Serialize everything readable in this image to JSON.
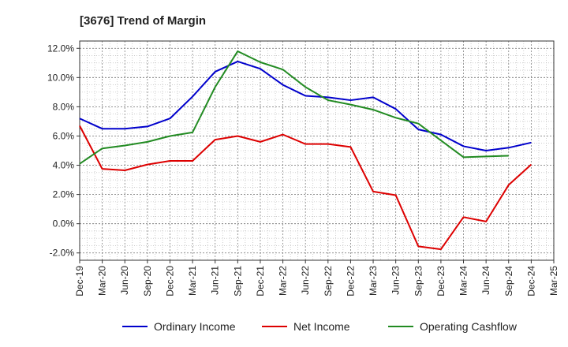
{
  "chart_data": {
    "type": "line",
    "title": "[3676]  Trend of Margin",
    "xlabel": "",
    "ylabel": "",
    "x": [
      "Dec-19",
      "Mar-20",
      "Jun-20",
      "Sep-20",
      "Dec-20",
      "Mar-21",
      "Jun-21",
      "Sep-21",
      "Dec-21",
      "Mar-22",
      "Jun-22",
      "Sep-22",
      "Dec-22",
      "Mar-23",
      "Jun-23",
      "Sep-23",
      "Dec-23",
      "Mar-24",
      "Jun-24",
      "Sep-24",
      "Dec-24",
      "Mar-25"
    ],
    "ylim": [
      -2.5,
      12.5
    ],
    "yticks": [
      -2.0,
      0.0,
      2.0,
      4.0,
      6.0,
      8.0,
      10.0,
      12.0
    ],
    "ytick_labels": [
      "-2.0%",
      "0.0%",
      "2.0%",
      "4.0%",
      "6.0%",
      "8.0%",
      "10.0%",
      "12.0%"
    ],
    "grid": true,
    "legend_position": "bottom",
    "series": [
      {
        "name": "Ordinary Income",
        "color": "#0000cc",
        "values": [
          7.2,
          6.5,
          6.5,
          6.65,
          7.2,
          8.7,
          10.4,
          11.1,
          10.6,
          9.5,
          8.75,
          8.65,
          8.45,
          8.65,
          7.85,
          6.45,
          6.1,
          5.3,
          5.0,
          5.2,
          5.55,
          null
        ]
      },
      {
        "name": "Net Income",
        "color": "#dd0000",
        "values": [
          6.7,
          3.75,
          3.65,
          4.05,
          4.3,
          4.3,
          5.75,
          6.0,
          5.6,
          6.1,
          5.45,
          5.45,
          5.25,
          2.2,
          1.95,
          -1.55,
          -1.75,
          0.45,
          0.15,
          2.65,
          4.05,
          null
        ]
      },
      {
        "name": "Operating Cashflow",
        "color": "#228b22",
        "values": [
          4.1,
          5.15,
          5.35,
          5.6,
          6.0,
          6.25,
          9.35,
          11.8,
          11.05,
          10.55,
          9.35,
          8.45,
          8.15,
          7.8,
          7.25,
          6.85,
          5.7,
          4.55,
          4.6,
          4.65,
          null,
          null
        ]
      }
    ]
  }
}
